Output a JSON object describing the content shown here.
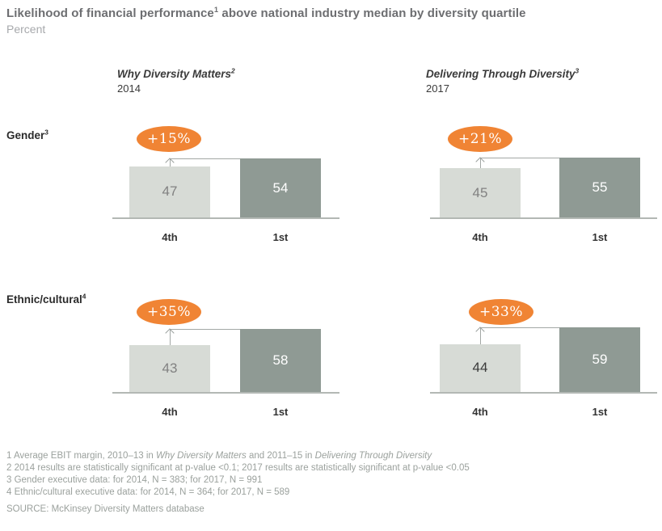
{
  "header": {
    "title_pre": "Likelihood of financial performance",
    "title_sup": "1",
    "title_post": " above national industry median by diversity quartile",
    "subtitle": "Percent"
  },
  "columns": [
    {
      "title": "Why Diversity Matters",
      "sup": "2",
      "year": "2014"
    },
    {
      "title": "Delivering Through Diversity",
      "sup": "3",
      "year": "2017"
    }
  ],
  "rows": [
    {
      "label": "Gender",
      "sup": "3"
    },
    {
      "label": "Ethnic/cultural",
      "sup": "4"
    }
  ],
  "colors": {
    "bar_4th_quartile": "#d7dbd6",
    "bar_1st_quartile": "#8f9a94",
    "delta_badge_orange": "#f08434",
    "title_gray": "#6d6e71",
    "muted_gray": "#a7a9ac",
    "footnote_gray": "#9ba19d"
  },
  "chart_data": {
    "type": "bar",
    "title": "Likelihood of financial performance above national industry median by diversity quartile",
    "unit": "Percent",
    "categories": [
      "4th",
      "1st"
    ],
    "ylim": [
      0,
      100
    ],
    "legend": "none",
    "panels": [
      {
        "study": "Why Diversity Matters",
        "year": "2014",
        "dimension": "Gender",
        "delta": "+15%",
        "bars": [
          {
            "label": "4th",
            "value": 47,
            "value_color": "#818181"
          },
          {
            "label": "1st",
            "value": 54,
            "value_color": "#ffffff"
          }
        ]
      },
      {
        "study": "Delivering Through Diversity",
        "year": "2017",
        "dimension": "Gender",
        "delta": "+21%",
        "bars": [
          {
            "label": "4th",
            "value": 45,
            "value_color": "#818181"
          },
          {
            "label": "1st",
            "value": 55,
            "value_color": "#ffffff"
          }
        ]
      },
      {
        "study": "Why Diversity Matters",
        "year": "2014",
        "dimension": "Ethnic/cultural",
        "delta": "+35%",
        "bars": [
          {
            "label": "4th",
            "value": 43,
            "value_color": "#818181"
          },
          {
            "label": "1st",
            "value": 58,
            "value_color": "#ffffff"
          }
        ]
      },
      {
        "study": "Delivering Through Diversity",
        "year": "2017",
        "dimension": "Ethnic/cultural",
        "delta": "+33%",
        "bars": [
          {
            "label": "4th",
            "value": 44,
            "value_color": "#3a3a3a"
          },
          {
            "label": "1st",
            "value": 59,
            "value_color": "#ffffff"
          }
        ]
      }
    ]
  },
  "footnotes": {
    "f1_parts": [
      "1 Average EBIT margin, 2010–13 in ",
      "Why Diversity Matters",
      " and 2011–15 in ",
      "Delivering Through Diversity"
    ],
    "f2": "2 2014 results are statistically significant at p-value <0.1; 2017 results are statistically significant at p-value <0.05",
    "f3": "3 Gender executive data: for 2014, N = 383; for 2017, N = 991",
    "f4": "4 Ethnic/cultural executive data: for 2014, N = 364; for 2017, N = 589"
  },
  "source": "SOURCE: McKinsey Diversity Matters database"
}
